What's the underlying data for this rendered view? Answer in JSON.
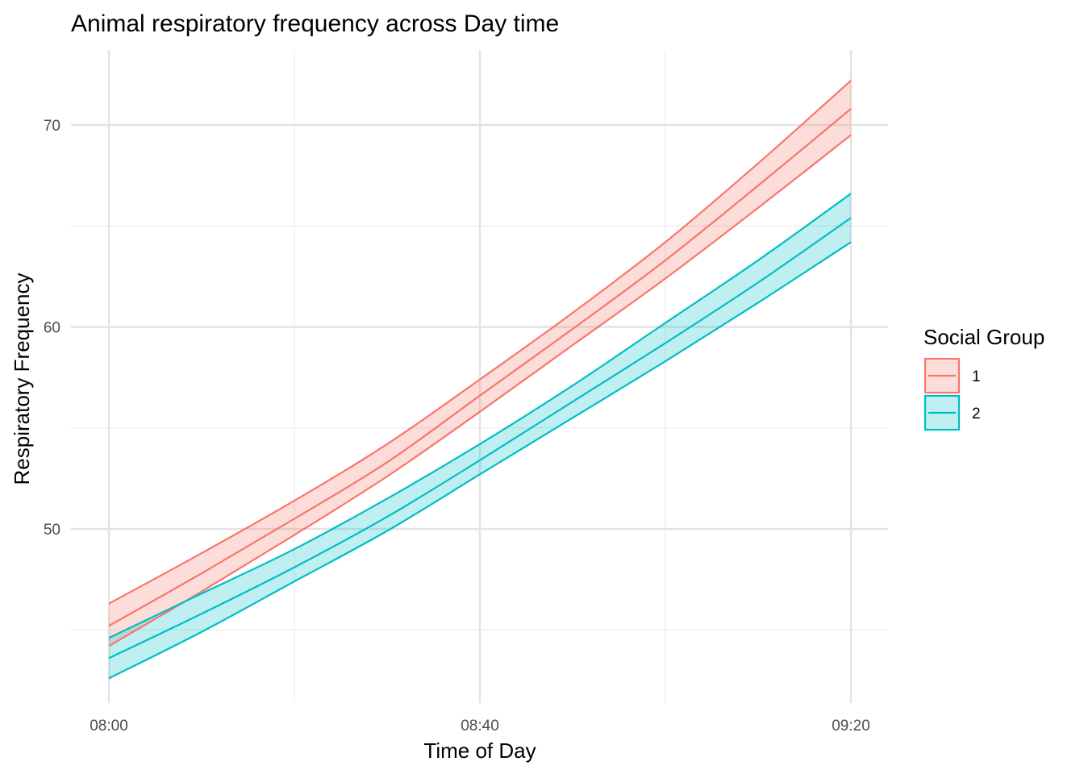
{
  "chart_data": {
    "type": "line",
    "title": "Animal respiratory frequency across Day time",
    "xlabel": "Time of Day",
    "ylabel": "Respiratory Frequency",
    "xlim": [
      "08:00",
      "09:20"
    ],
    "ylim": [
      41.5,
      73.5
    ],
    "x_ticks": [
      "08:00",
      "08:40",
      "09:20"
    ],
    "y_ticks": [
      50,
      60,
      70
    ],
    "grid": true,
    "x": [
      "08:00",
      "08:10",
      "08:20",
      "08:30",
      "08:40",
      "08:50",
      "09:00",
      "09:10",
      "09:20"
    ],
    "series": [
      {
        "name": "1",
        "color": "#F8766D",
        "fill": "#FFDEDD",
        "values": [
          45.2,
          47.8,
          50.5,
          53.3,
          56.6,
          59.9,
          63.3,
          67.0,
          70.8
        ],
        "lower": [
          44.2,
          46.9,
          49.7,
          52.6,
          55.8,
          59.1,
          62.4,
          65.9,
          69.5
        ],
        "upper": [
          46.3,
          48.8,
          51.4,
          54.2,
          57.4,
          60.7,
          64.2,
          68.1,
          72.2
        ]
      },
      {
        "name": "2",
        "color": "#00BFC4",
        "fill": "#CCF0F1",
        "values": [
          43.6,
          45.8,
          48.1,
          50.6,
          53.4,
          56.3,
          59.2,
          62.2,
          65.4
        ],
        "lower": [
          42.6,
          44.9,
          47.4,
          49.9,
          52.7,
          55.5,
          58.3,
          61.2,
          64.2
        ],
        "upper": [
          44.6,
          46.8,
          49.0,
          51.5,
          54.2,
          57.1,
          60.2,
          63.3,
          66.6
        ]
      }
    ],
    "legend": {
      "title": "Social Group",
      "position": "right"
    }
  }
}
